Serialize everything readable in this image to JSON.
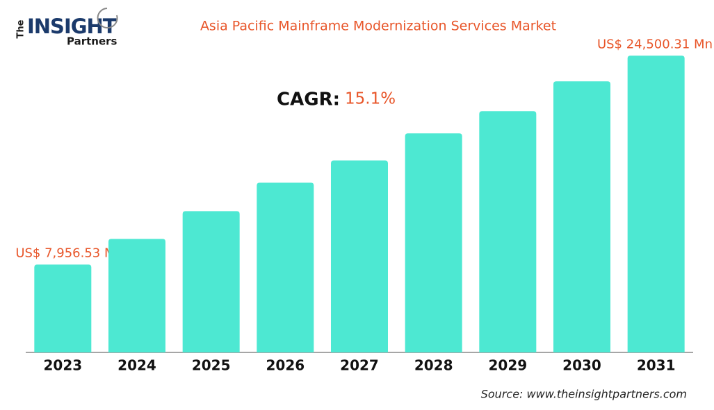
{
  "logo": {
    "prefix": "The",
    "name": "INSIGHT",
    "suffix": "Partners"
  },
  "chart_data": {
    "type": "bar",
    "title": "Asia Pacific Mainframe Modernization Services Market",
    "categories": [
      "2023",
      "2024",
      "2025",
      "2026",
      "2027",
      "2028",
      "2029",
      "2030",
      "2031"
    ],
    "values": [
      7956.53,
      9990,
      12190,
      14440,
      16200,
      18350,
      20110,
      22470,
      24500.31
    ],
    "value_labels": [
      "US$ 7,956.53 Mn",
      null,
      null,
      null,
      null,
      null,
      null,
      null,
      "US$ 24,500.31 Mn"
    ],
    "color": "#4de8d2",
    "ylim": [
      1000,
      26000
    ],
    "cagr": {
      "label": "CAGR:",
      "value": "15.1%"
    },
    "source": "Source: www.theinsightpartners.com"
  }
}
